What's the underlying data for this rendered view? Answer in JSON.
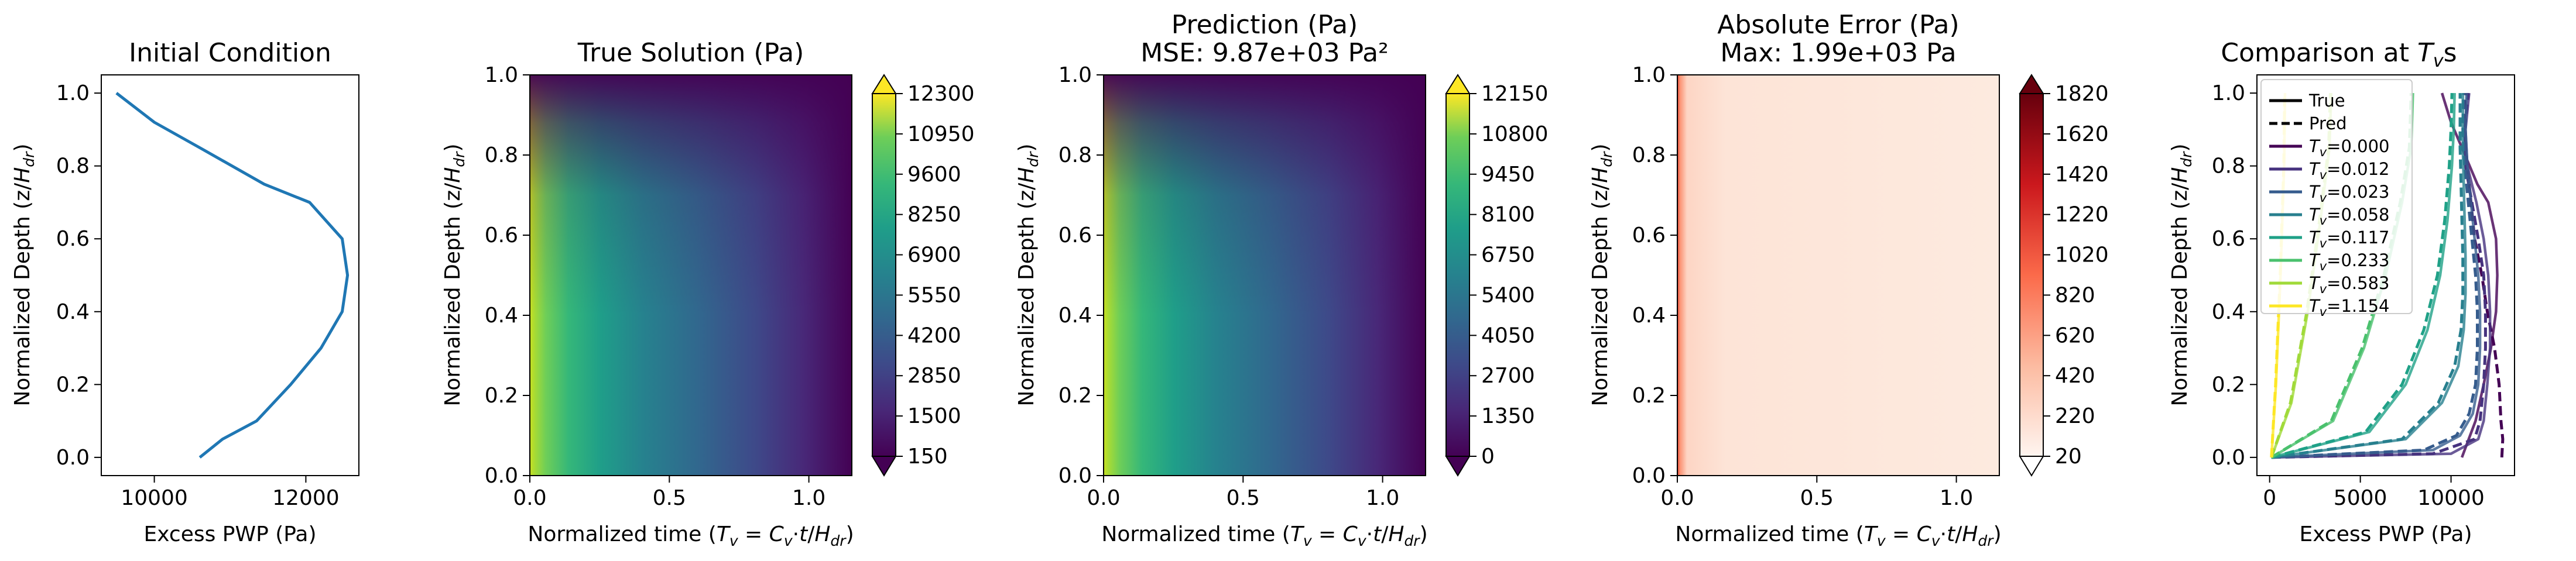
{
  "chart_data": [
    {
      "type": "line",
      "title": "Initial Condition",
      "xlabel": "Excess PWP (Pa)",
      "ylabel": "Normalized Depth (z/H_dr)",
      "xlim": [
        9300,
        12700
      ],
      "ylim": [
        1.05,
        -0.05
      ],
      "xticks": [
        {
          "v": 10000,
          "label": "10000"
        },
        {
          "v": 12000,
          "label": "12000"
        }
      ],
      "yticks": [
        {
          "v": 0.0,
          "label": "0.0"
        },
        {
          "v": 0.2,
          "label": "0.2"
        },
        {
          "v": 0.4,
          "label": "0.4"
        },
        {
          "v": 0.6,
          "label": "0.6"
        },
        {
          "v": 0.8,
          "label": "0.8"
        },
        {
          "v": 1.0,
          "label": "1.0"
        }
      ],
      "series": [
        {
          "color": "#1f77b4",
          "points": [
            [
              10600,
              0.0
            ],
            [
              10900,
              0.05
            ],
            [
              11350,
              0.1
            ],
            [
              11800,
              0.2
            ],
            [
              12200,
              0.3
            ],
            [
              12480,
              0.4
            ],
            [
              12550,
              0.5
            ],
            [
              12480,
              0.6
            ],
            [
              12050,
              0.7
            ],
            [
              11450,
              0.75
            ],
            [
              10600,
              0.85
            ],
            [
              10000,
              0.92
            ],
            [
              9500,
              1.0
            ]
          ]
        }
      ]
    },
    {
      "type": "heatmap",
      "title": "True Solution (Pa)",
      "xlabel": "Normalized time (T_v = C_v·t/H_dr)",
      "ylabel": "Normalized Depth (z/H_dr)",
      "xlim": [
        0,
        1.154
      ],
      "ylim": [
        1.0,
        0.0
      ],
      "xticks": [
        {
          "v": 0.0,
          "label": "0.0"
        },
        {
          "v": 0.5,
          "label": "0.5"
        },
        {
          "v": 1.0,
          "label": "1.0"
        }
      ],
      "yticks": [
        {
          "v": 0.0,
          "label": "0.0"
        },
        {
          "v": 0.2,
          "label": "0.2"
        },
        {
          "v": 0.4,
          "label": "0.4"
        },
        {
          "v": 0.6,
          "label": "0.6"
        },
        {
          "v": 0.8,
          "label": "0.8"
        },
        {
          "v": 1.0,
          "label": "1.0"
        }
      ],
      "colormap": "viridis",
      "vmin": 150,
      "vmax": 12300,
      "colorbar_ticks": [
        "150",
        "1500",
        "2850",
        "4200",
        "5550",
        "6900",
        "8250",
        "9600",
        "10950",
        "12300"
      ]
    },
    {
      "type": "heatmap",
      "title": "Prediction (Pa)",
      "subtitle": "MSE: 9.87e+03 Pa²",
      "xlabel": "Normalized time (T_v = C_v·t/H_dr)",
      "ylabel": "Normalized Depth (z/H_dr)",
      "xlim": [
        0,
        1.154
      ],
      "ylim": [
        1.0,
        0.0
      ],
      "xticks": [
        {
          "v": 0.0,
          "label": "0.0"
        },
        {
          "v": 0.5,
          "label": "0.5"
        },
        {
          "v": 1.0,
          "label": "1.0"
        }
      ],
      "yticks": [
        {
          "v": 0.0,
          "label": "0.0"
        },
        {
          "v": 0.2,
          "label": "0.2"
        },
        {
          "v": 0.4,
          "label": "0.4"
        },
        {
          "v": 0.6,
          "label": "0.6"
        },
        {
          "v": 0.8,
          "label": "0.8"
        },
        {
          "v": 1.0,
          "label": "1.0"
        }
      ],
      "colormap": "viridis",
      "vmin": 0,
      "vmax": 12150,
      "colorbar_ticks": [
        "0",
        "1350",
        "2700",
        "4050",
        "5400",
        "6750",
        "8100",
        "9450",
        "10800",
        "12150"
      ]
    },
    {
      "type": "heatmap",
      "title": "Absolute Error (Pa)",
      "subtitle": "Max: 1.99e+03 Pa",
      "xlabel": "Normalized time (T_v = C_v·t/H_dr)",
      "ylabel": "Normalized Depth (z/H_dr)",
      "xlim": [
        0,
        1.154
      ],
      "ylim": [
        1.0,
        0.0
      ],
      "xticks": [
        {
          "v": 0.0,
          "label": "0.0"
        },
        {
          "v": 0.5,
          "label": "0.5"
        },
        {
          "v": 1.0,
          "label": "1.0"
        }
      ],
      "yticks": [
        {
          "v": 0.0,
          "label": "0.0"
        },
        {
          "v": 0.2,
          "label": "0.2"
        },
        {
          "v": 0.4,
          "label": "0.4"
        },
        {
          "v": 0.6,
          "label": "0.6"
        },
        {
          "v": 0.8,
          "label": "0.8"
        },
        {
          "v": 1.0,
          "label": "1.0"
        }
      ],
      "colormap": "reds",
      "vmin": 20,
      "vmax": 1990,
      "colorbar_ticks": [
        "20",
        "220",
        "420",
        "620",
        "820",
        "1020",
        "1220",
        "1420",
        "1620",
        "1820"
      ]
    },
    {
      "type": "line",
      "title": "Comparison at T_vs",
      "xlabel": "Excess PWP (Pa)",
      "ylabel": "Normalized Depth (z/H_dr)",
      "xlim": [
        -700,
        13500
      ],
      "ylim": [
        1.05,
        -0.05
      ],
      "xticks": [
        {
          "v": 0,
          "label": "0"
        },
        {
          "v": 5000,
          "label": "5000"
        },
        {
          "v": 10000,
          "label": "10000"
        }
      ],
      "yticks": [
        {
          "v": 0.0,
          "label": "0.0"
        },
        {
          "v": 0.2,
          "label": "0.2"
        },
        {
          "v": 0.4,
          "label": "0.4"
        },
        {
          "v": 0.6,
          "label": "0.6"
        },
        {
          "v": 0.8,
          "label": "0.8"
        },
        {
          "v": 1.0,
          "label": "1.0"
        }
      ],
      "legend": {
        "position": "top-left",
        "entries": [
          {
            "label": "True",
            "color": "#000000",
            "dash": false
          },
          {
            "label": "Pred",
            "color": "#000000",
            "dash": true
          },
          {
            "label": "T_v=0.000",
            "color": "#440154",
            "dash": false
          },
          {
            "label": "T_v=0.012",
            "color": "#46327e",
            "dash": false
          },
          {
            "label": "T_v=0.023",
            "color": "#365c8d",
            "dash": false
          },
          {
            "label": "T_v=0.058",
            "color": "#277f8e",
            "dash": false
          },
          {
            "label": "T_v=0.117",
            "color": "#1fa187",
            "dash": false
          },
          {
            "label": "T_v=0.233",
            "color": "#4ac16d",
            "dash": false
          },
          {
            "label": "T_v=0.583",
            "color": "#a0da39",
            "dash": false
          },
          {
            "label": "T_v=1.154",
            "color": "#fde725",
            "dash": false
          }
        ]
      },
      "series": [
        {
          "tv": "0.000",
          "color": "#440154",
          "true": [
            [
              10600,
              0.0
            ],
            [
              11350,
              0.1
            ],
            [
              11800,
              0.2
            ],
            [
              12200,
              0.3
            ],
            [
              12480,
              0.4
            ],
            [
              12550,
              0.5
            ],
            [
              12480,
              0.6
            ],
            [
              12050,
              0.7
            ],
            [
              11450,
              0.75
            ],
            [
              10600,
              0.85
            ],
            [
              10000,
              0.92
            ],
            [
              9500,
              1.0
            ]
          ],
          "pred": [
            [
              12800,
              0.0
            ],
            [
              12850,
              0.05
            ],
            [
              12750,
              0.1
            ],
            [
              12650,
              0.2
            ],
            [
              12400,
              0.3
            ],
            [
              12000,
              0.4
            ],
            [
              11700,
              0.5
            ],
            [
              11300,
              0.6
            ],
            [
              10900,
              0.8
            ],
            [
              10700,
              0.9
            ],
            [
              10800,
              1.0
            ]
          ]
        },
        {
          "tv": "0.012",
          "color": "#46327e",
          "true": [
            [
              100,
              0.0
            ],
            [
              10000,
              0.01
            ],
            [
              11500,
              0.05
            ],
            [
              11800,
              0.1
            ],
            [
              12000,
              0.2
            ],
            [
              12150,
              0.3
            ],
            [
              12150,
              0.4
            ],
            [
              12050,
              0.5
            ],
            [
              11800,
              0.6
            ],
            [
              11400,
              0.7
            ],
            [
              10900,
              0.8
            ],
            [
              10800,
              0.9
            ],
            [
              11000,
              1.0
            ]
          ],
          "pred": [
            [
              100,
              0.0
            ],
            [
              9000,
              0.01
            ],
            [
              11300,
              0.05
            ],
            [
              11600,
              0.1
            ],
            [
              11800,
              0.2
            ],
            [
              11900,
              0.3
            ],
            [
              11900,
              0.4
            ],
            [
              11800,
              0.5
            ],
            [
              11500,
              0.6
            ],
            [
              11150,
              0.7
            ],
            [
              10800,
              0.8
            ],
            [
              10750,
              0.9
            ],
            [
              10950,
              1.0
            ]
          ]
        },
        {
          "tv": "0.023",
          "color": "#365c8d",
          "true": [
            [
              100,
              0.0
            ],
            [
              9000,
              0.02
            ],
            [
              10500,
              0.06
            ],
            [
              11200,
              0.12
            ],
            [
              11500,
              0.2
            ],
            [
              11600,
              0.3
            ],
            [
              11600,
              0.4
            ],
            [
              11500,
              0.5
            ],
            [
              11300,
              0.6
            ],
            [
              11100,
              0.7
            ],
            [
              10900,
              0.8
            ],
            [
              10800,
              0.9
            ],
            [
              10850,
              1.0
            ]
          ],
          "pred": [
            [
              100,
              0.0
            ],
            [
              8500,
              0.02
            ],
            [
              10300,
              0.06
            ],
            [
              11000,
              0.12
            ],
            [
              11350,
              0.2
            ],
            [
              11450,
              0.3
            ],
            [
              11450,
              0.4
            ],
            [
              11350,
              0.5
            ],
            [
              11150,
              0.6
            ],
            [
              10950,
              0.7
            ],
            [
              10750,
              0.8
            ],
            [
              10650,
              0.9
            ],
            [
              10700,
              1.0
            ]
          ]
        },
        {
          "tv": "0.058",
          "color": "#277f8e",
          "true": [
            [
              100,
              0.0
            ],
            [
              7500,
              0.05
            ],
            [
              9500,
              0.15
            ],
            [
              10400,
              0.25
            ],
            [
              10700,
              0.35
            ],
            [
              10800,
              0.45
            ],
            [
              10800,
              0.55
            ],
            [
              10750,
              0.65
            ],
            [
              10700,
              0.75
            ],
            [
              10650,
              0.85
            ],
            [
              10650,
              1.0
            ]
          ],
          "pred": [
            [
              100,
              0.0
            ],
            [
              7300,
              0.05
            ],
            [
              9300,
              0.15
            ],
            [
              10200,
              0.25
            ],
            [
              10550,
              0.35
            ],
            [
              10650,
              0.45
            ],
            [
              10650,
              0.55
            ],
            [
              10600,
              0.65
            ],
            [
              10550,
              0.75
            ],
            [
              10500,
              0.85
            ],
            [
              10500,
              1.0
            ]
          ]
        },
        {
          "tv": "0.117",
          "color": "#1fa187",
          "true": [
            [
              100,
              0.0
            ],
            [
              5500,
              0.07
            ],
            [
              7500,
              0.2
            ],
            [
              8700,
              0.35
            ],
            [
              9400,
              0.5
            ],
            [
              9800,
              0.65
            ],
            [
              10050,
              0.8
            ],
            [
              10150,
              0.9
            ],
            [
              10200,
              1.0
            ]
          ],
          "pred": [
            [
              100,
              0.0
            ],
            [
              5300,
              0.07
            ],
            [
              7300,
              0.2
            ],
            [
              8500,
              0.35
            ],
            [
              9250,
              0.5
            ],
            [
              9650,
              0.65
            ],
            [
              9900,
              0.8
            ],
            [
              10000,
              0.9
            ],
            [
              10050,
              1.0
            ]
          ]
        },
        {
          "tv": "0.233",
          "color": "#4ac16d",
          "true": [
            [
              100,
              0.0
            ],
            [
              3500,
              0.1
            ],
            [
              5200,
              0.3
            ],
            [
              6400,
              0.5
            ],
            [
              7300,
              0.7
            ],
            [
              7800,
              0.85
            ],
            [
              7900,
              1.0
            ]
          ],
          "pred": [
            [
              100,
              0.0
            ],
            [
              3400,
              0.1
            ],
            [
              5100,
              0.3
            ],
            [
              6300,
              0.5
            ],
            [
              7200,
              0.7
            ],
            [
              7700,
              0.85
            ],
            [
              7800,
              1.0
            ]
          ]
        },
        {
          "tv": "0.583",
          "color": "#a0da39",
          "true": [
            [
              100,
              0.0
            ],
            [
              1200,
              0.15
            ],
            [
              2100,
              0.4
            ],
            [
              2800,
              0.65
            ],
            [
              3300,
              0.85
            ],
            [
              3400,
              1.0
            ]
          ],
          "pred": [
            [
              100,
              0.0
            ],
            [
              1150,
              0.15
            ],
            [
              2050,
              0.4
            ],
            [
              2750,
              0.65
            ],
            [
              3250,
              0.85
            ],
            [
              3350,
              1.0
            ]
          ]
        },
        {
          "tv": "1.154",
          "color": "#fde725",
          "true": [
            [
              100,
              0.0
            ],
            [
              350,
              0.2
            ],
            [
              600,
              0.5
            ],
            [
              800,
              0.8
            ],
            [
              850,
              1.0
            ]
          ],
          "pred": [
            [
              100,
              0.0
            ],
            [
              330,
              0.2
            ],
            [
              580,
              0.5
            ],
            [
              780,
              0.8
            ],
            [
              830,
              1.0
            ]
          ]
        }
      ]
    }
  ]
}
